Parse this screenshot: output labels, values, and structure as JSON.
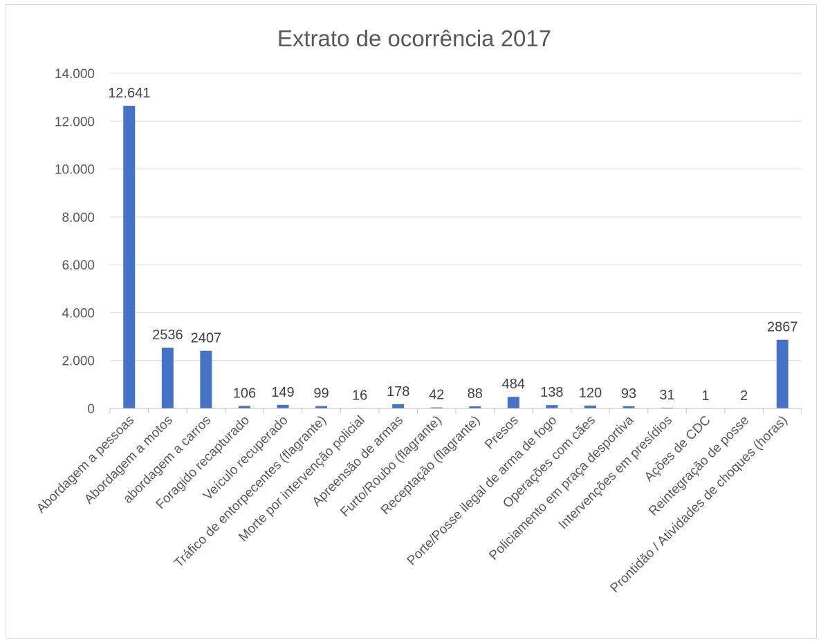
{
  "chart_data": {
    "type": "bar",
    "title": "Extrato de ocorrência 2017",
    "xlabel": "",
    "ylabel": "",
    "ylim": [
      0,
      14000
    ],
    "yticks": [
      0,
      2000,
      4000,
      6000,
      8000,
      10000,
      12000,
      14000
    ],
    "ytick_labels": [
      "0",
      "2.000",
      "4.000",
      "6.000",
      "8.000",
      "10.000",
      "12.000",
      "14.000"
    ],
    "grid": true,
    "legend": "none",
    "bar_color": "#4472c4",
    "categories": [
      "Abordagem a pessoas",
      "Abordagem a motos",
      "abordagem a carros",
      "Foragido recapturado",
      "Veículo recuperado",
      "Tráfico de entorpecentes (flagrante)",
      "Morte por intervenção policial",
      "Apreensão de armas",
      "Furto/Roubo (flagrante)",
      "Receptação (flagrante)",
      "Presos",
      "Porte/Posse ilegal de arma de fogo",
      "Operações com cães",
      "Policiamento em praça desportiva",
      "Intervenções em presídios",
      "Ações de CDC",
      "Reintegração de posse",
      "Prontidão / Atividades de choques (horas)"
    ],
    "values": [
      12641,
      2536,
      2407,
      106,
      149,
      99,
      16,
      178,
      42,
      88,
      484,
      138,
      120,
      93,
      31,
      1,
      2,
      2867
    ],
    "data_labels": [
      "12.641",
      "2536",
      "2407",
      "106",
      "149",
      "99",
      "16",
      "178",
      "42",
      "88",
      "484",
      "138",
      "120",
      "93",
      "31",
      "1",
      "2",
      "2867"
    ]
  }
}
